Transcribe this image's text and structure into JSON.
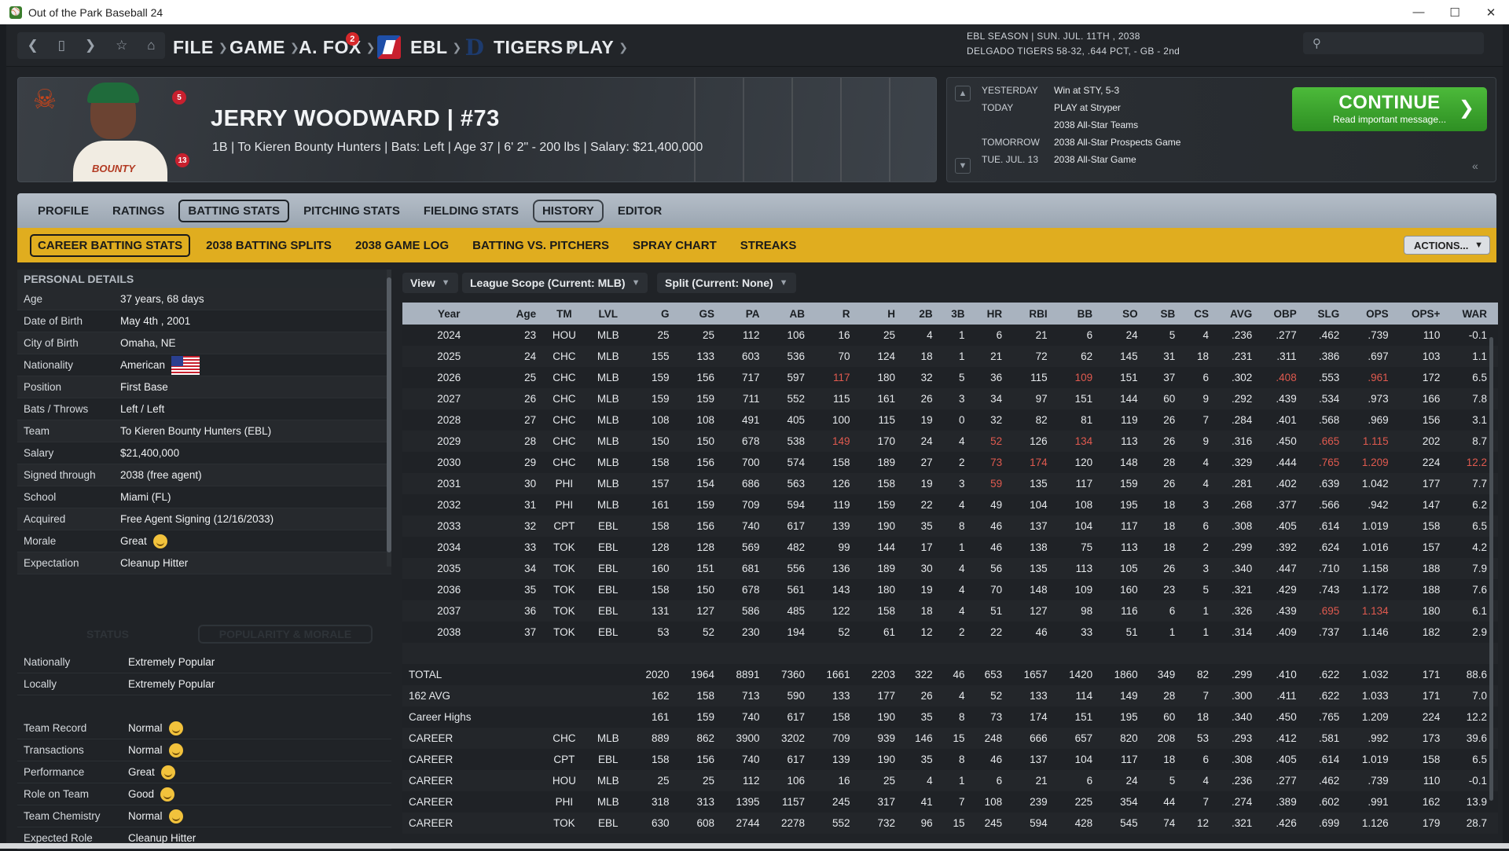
{
  "window": {
    "title": "Out of the Park Baseball 24",
    "min": "—",
    "max": "☐",
    "close": "✕"
  },
  "nav": {
    "menus": [
      {
        "label": "FILE"
      },
      {
        "label": "GAME"
      },
      {
        "label": "A. FOX",
        "badge": "2"
      },
      {
        "label": "EBL"
      },
      {
        "label": "TIGERS"
      },
      {
        "label": "PLAY"
      }
    ],
    "season_line1": "EBL SEASON  |  SUN. JUL. 11TH , 2038",
    "season_line2": "DELGADO TIGERS  58-32, .644 PCT, - GB - 2nd",
    "search_placeholder": ""
  },
  "player": {
    "name": "JERRY WOODWARD  |  #73",
    "info": "1B | To Kieren Bounty Hunters  |  Bats: Left  |  Age 37  |  6' 2\" - 200 lbs  |  Salary: $21,400,000",
    "badges": [
      "5",
      "13"
    ]
  },
  "schedule": {
    "rows": [
      {
        "k": "YESTERDAY",
        "v": "Win at STY, 5-3"
      },
      {
        "k": "TODAY",
        "v": "PLAY at Stryper"
      },
      {
        "k": "",
        "v": "2038 All-Star Teams"
      },
      {
        "k": "TOMORROW",
        "v": "2038 All-Star Prospects Game"
      },
      {
        "k": "TUE. JUL. 13",
        "v": "2038 All-Star Game"
      }
    ],
    "continue_label": "CONTINUE",
    "continue_sub": "Read important message..."
  },
  "tabs_main": [
    "PROFILE",
    "RATINGS",
    "BATTING STATS",
    "PITCHING STATS",
    "FIELDING STATS",
    "HISTORY",
    "EDITOR"
  ],
  "tabs_sub": [
    "CAREER BATTING STATS",
    "2038 BATTING SPLITS",
    "2038 GAME LOG",
    "BATTING VS. PITCHERS",
    "SPRAY CHART",
    "STREAKS"
  ],
  "actions_label": "ACTIONS...",
  "personal": {
    "heading": "PERSONAL DETAILS",
    "rows": [
      {
        "k": "Age",
        "v": "37 years, 68 days"
      },
      {
        "k": "Date of Birth",
        "v": "May 4th , 2001"
      },
      {
        "k": "City of Birth",
        "v": "Omaha, NE"
      },
      {
        "k": "Nationality",
        "v": "American"
      },
      {
        "k": "Position",
        "v": "First Base"
      },
      {
        "k": "Bats / Throws",
        "v": "Left / Left"
      },
      {
        "k": "Team",
        "v": "To Kieren Bounty Hunters (EBL)"
      },
      {
        "k": "Salary",
        "v": "$21,400,000"
      },
      {
        "k": "Signed through",
        "v": "2038 (free agent)"
      },
      {
        "k": "School",
        "v": "Miami (FL)"
      },
      {
        "k": "Acquired",
        "v": "Free Agent Signing (12/16/2033)"
      },
      {
        "k": "Morale",
        "v": "Great"
      },
      {
        "k": "Expectation",
        "v": "Cleanup Hitter"
      }
    ]
  },
  "status": {
    "tab_status": "STATUS",
    "tab_pop": "POPULARITY & MORALE",
    "rows": [
      {
        "k": "Nationally",
        "v": "Extremely Popular"
      },
      {
        "k": "Locally",
        "v": "Extremely Popular"
      },
      {
        "k": "",
        "v": ""
      },
      {
        "k": "Team Record",
        "v": "Normal"
      },
      {
        "k": "Transactions",
        "v": "Normal"
      },
      {
        "k": "Performance",
        "v": "Great"
      },
      {
        "k": "Role on Team",
        "v": "Good"
      },
      {
        "k": "Team Chemistry",
        "v": "Normal"
      },
      {
        "k": "Expected Role",
        "v": "Cleanup Hitter"
      }
    ]
  },
  "filters": {
    "view": "View",
    "scope": "League Scope (Current: MLB)",
    "split": "Split (Current: None)"
  },
  "stats": {
    "columns": [
      "Year",
      "Age",
      "TM",
      "LVL",
      "G",
      "GS",
      "PA",
      "AB",
      "R",
      "H",
      "2B",
      "3B",
      "HR",
      "RBI",
      "BB",
      "SO",
      "SB",
      "CS",
      "AVG",
      "OBP",
      "SLG",
      "OPS",
      "OPS+",
      "WAR"
    ],
    "rows": [
      [
        "2024",
        "23",
        "HOU",
        "MLB",
        "25",
        "25",
        "112",
        "106",
        "16",
        "25",
        "4",
        "1",
        "6",
        "21",
        "6",
        "24",
        "5",
        "4",
        ".236",
        ".277",
        ".462",
        ".739",
        "110",
        "-0.1"
      ],
      [
        "2025",
        "24",
        "CHC",
        "MLB",
        "155",
        "133",
        "603",
        "536",
        "70",
        "124",
        "18",
        "1",
        "21",
        "72",
        "62",
        "145",
        "31",
        "18",
        ".231",
        ".311",
        ".386",
        ".697",
        "103",
        "1.1"
      ],
      [
        "2026",
        "25",
        "CHC",
        "MLB",
        "159",
        "156",
        "717",
        "597",
        "117",
        "180",
        "32",
        "5",
        "36",
        "115",
        "109",
        "151",
        "37",
        "6",
        ".302",
        ".408",
        ".553",
        ".961",
        "172",
        "6.5"
      ],
      [
        "2027",
        "26",
        "CHC",
        "MLB",
        "159",
        "159",
        "711",
        "552",
        "115",
        "161",
        "26",
        "3",
        "34",
        "97",
        "151",
        "144",
        "60",
        "9",
        ".292",
        ".439",
        ".534",
        ".973",
        "166",
        "7.8"
      ],
      [
        "2028",
        "27",
        "CHC",
        "MLB",
        "108",
        "108",
        "491",
        "405",
        "100",
        "115",
        "19",
        "0",
        "32",
        "82",
        "81",
        "119",
        "26",
        "7",
        ".284",
        ".401",
        ".568",
        ".969",
        "156",
        "3.1"
      ],
      [
        "2029",
        "28",
        "CHC",
        "MLB",
        "150",
        "150",
        "678",
        "538",
        "149",
        "170",
        "24",
        "4",
        "52",
        "126",
        "134",
        "113",
        "26",
        "9",
        ".316",
        ".450",
        ".665",
        "1.115",
        "202",
        "8.7"
      ],
      [
        "2030",
        "29",
        "CHC",
        "MLB",
        "158",
        "156",
        "700",
        "574",
        "158",
        "189",
        "27",
        "2",
        "73",
        "174",
        "120",
        "148",
        "28",
        "4",
        ".329",
        ".444",
        ".765",
        "1.209",
        "224",
        "12.2"
      ],
      [
        "2031",
        "30",
        "PHI",
        "MLB",
        "157",
        "154",
        "686",
        "563",
        "126",
        "158",
        "19",
        "3",
        "59",
        "135",
        "117",
        "159",
        "26",
        "4",
        ".281",
        ".402",
        ".639",
        "1.042",
        "177",
        "7.7"
      ],
      [
        "2032",
        "31",
        "PHI",
        "MLB",
        "161",
        "159",
        "709",
        "594",
        "119",
        "159",
        "22",
        "4",
        "49",
        "104",
        "108",
        "195",
        "18",
        "3",
        ".268",
        ".377",
        ".566",
        ".942",
        "147",
        "6.2"
      ],
      [
        "2033",
        "32",
        "CPT",
        "EBL",
        "158",
        "156",
        "740",
        "617",
        "139",
        "190",
        "35",
        "8",
        "46",
        "137",
        "104",
        "117",
        "18",
        "6",
        ".308",
        ".405",
        ".614",
        "1.019",
        "158",
        "6.5"
      ],
      [
        "2034",
        "33",
        "TOK",
        "EBL",
        "128",
        "128",
        "569",
        "482",
        "99",
        "144",
        "17",
        "1",
        "46",
        "138",
        "75",
        "113",
        "18",
        "2",
        ".299",
        ".392",
        ".624",
        "1.016",
        "157",
        "4.2"
      ],
      [
        "2035",
        "34",
        "TOK",
        "EBL",
        "160",
        "151",
        "681",
        "556",
        "136",
        "189",
        "30",
        "4",
        "56",
        "135",
        "113",
        "105",
        "26",
        "3",
        ".340",
        ".447",
        ".710",
        "1.158",
        "188",
        "7.9"
      ],
      [
        "2036",
        "35",
        "TOK",
        "EBL",
        "158",
        "150",
        "678",
        "561",
        "143",
        "180",
        "19",
        "4",
        "70",
        "148",
        "109",
        "160",
        "23",
        "5",
        ".321",
        ".429",
        ".743",
        "1.172",
        "188",
        "7.6"
      ],
      [
        "2037",
        "36",
        "TOK",
        "EBL",
        "131",
        "127",
        "586",
        "485",
        "122",
        "158",
        "18",
        "4",
        "51",
        "127",
        "98",
        "116",
        "6",
        "1",
        ".326",
        ".439",
        ".695",
        "1.134",
        "180",
        "6.1"
      ],
      [
        "2038",
        "37",
        "TOK",
        "EBL",
        "53",
        "52",
        "230",
        "194",
        "52",
        "61",
        "12",
        "2",
        "22",
        "46",
        "33",
        "51",
        "1",
        "1",
        ".314",
        ".409",
        ".737",
        "1.146",
        "182",
        "2.9"
      ]
    ],
    "highlights": [
      [
        2,
        8
      ],
      [
        2,
        14
      ],
      [
        2,
        19
      ],
      [
        2,
        21
      ],
      [
        5,
        8
      ],
      [
        5,
        12
      ],
      [
        5,
        14
      ],
      [
        5,
        20
      ],
      [
        5,
        21
      ],
      [
        6,
        12
      ],
      [
        6,
        13
      ],
      [
        6,
        20
      ],
      [
        6,
        21
      ],
      [
        6,
        23
      ],
      [
        7,
        12
      ],
      [
        13,
        20
      ],
      [
        13,
        21
      ]
    ],
    "totals": [
      [
        "TOTAL",
        "",
        "",
        "",
        "2020",
        "1964",
        "8891",
        "7360",
        "1661",
        "2203",
        "322",
        "46",
        "653",
        "1657",
        "1420",
        "1860",
        "349",
        "82",
        ".299",
        ".410",
        ".622",
        "1.032",
        "171",
        "88.6"
      ],
      [
        "162 AVG",
        "",
        "",
        "",
        "162",
        "158",
        "713",
        "590",
        "133",
        "177",
        "26",
        "4",
        "52",
        "133",
        "114",
        "149",
        "28",
        "7",
        ".300",
        ".411",
        ".622",
        "1.033",
        "171",
        "7.0"
      ],
      [
        "Career Highs",
        "",
        "",
        "",
        "161",
        "159",
        "740",
        "617",
        "158",
        "190",
        "35",
        "8",
        "73",
        "174",
        "151",
        "195",
        "60",
        "18",
        ".340",
        ".450",
        ".765",
        "1.209",
        "224",
        "12.2"
      ],
      [
        "CAREER",
        "",
        "CHC",
        "MLB",
        "889",
        "862",
        "3900",
        "3202",
        "709",
        "939",
        "146",
        "15",
        "248",
        "666",
        "657",
        "820",
        "208",
        "53",
        ".293",
        ".412",
        ".581",
        ".992",
        "173",
        "39.6"
      ],
      [
        "CAREER",
        "",
        "CPT",
        "EBL",
        "158",
        "156",
        "740",
        "617",
        "139",
        "190",
        "35",
        "8",
        "46",
        "137",
        "104",
        "117",
        "18",
        "6",
        ".308",
        ".405",
        ".614",
        "1.019",
        "158",
        "6.5"
      ],
      [
        "CAREER",
        "",
        "HOU",
        "MLB",
        "25",
        "25",
        "112",
        "106",
        "16",
        "25",
        "4",
        "1",
        "6",
        "21",
        "6",
        "24",
        "5",
        "4",
        ".236",
        ".277",
        ".462",
        ".739",
        "110",
        "-0.1"
      ],
      [
        "CAREER",
        "",
        "PHI",
        "MLB",
        "318",
        "313",
        "1395",
        "1157",
        "245",
        "317",
        "41",
        "7",
        "108",
        "239",
        "225",
        "354",
        "44",
        "7",
        ".274",
        ".389",
        ".602",
        ".991",
        "162",
        "13.9"
      ],
      [
        "CAREER",
        "",
        "TOK",
        "EBL",
        "630",
        "608",
        "2744",
        "2278",
        "552",
        "732",
        "96",
        "15",
        "245",
        "594",
        "428",
        "545",
        "74",
        "12",
        ".321",
        ".426",
        ".699",
        "1.126",
        "179",
        "28.7"
      ]
    ]
  }
}
